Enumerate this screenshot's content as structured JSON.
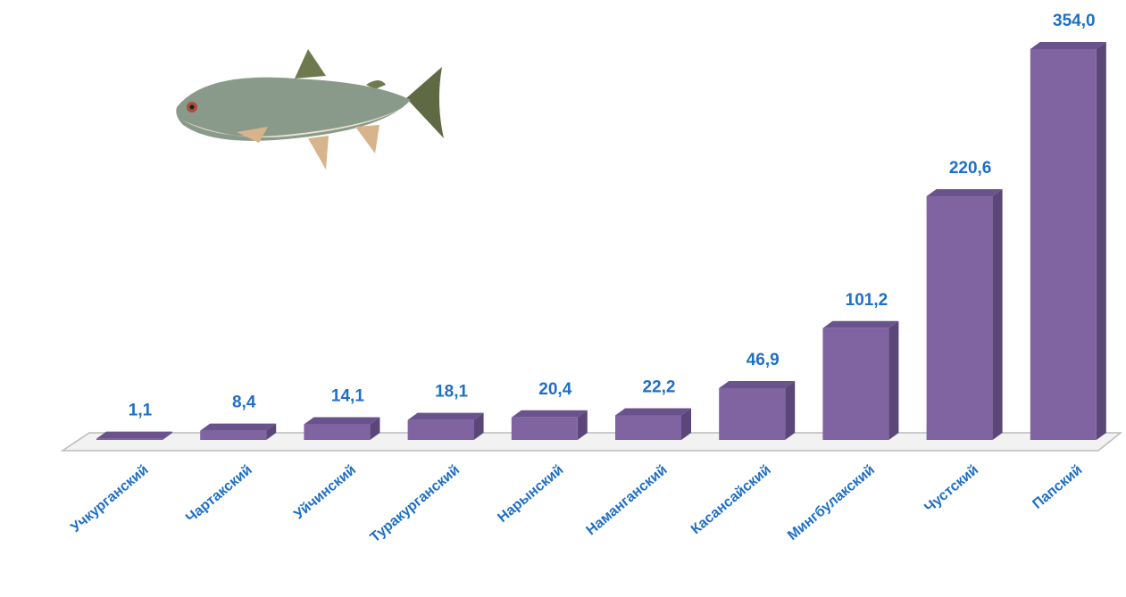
{
  "chart_data": {
    "type": "bar",
    "categories": [
      "Учкурганский",
      "Чартакский",
      "Уйчинский",
      "Туракурганский",
      "Нарынский",
      "Наманганский",
      "Касансайский",
      "Мингбулакский",
      "Чустский",
      "Папский"
    ],
    "values": [
      1.1,
      8.4,
      14.1,
      18.1,
      20.4,
      22.2,
      46.9,
      101.2,
      220.6,
      354.0
    ],
    "value_labels": [
      "1,1",
      "8,4",
      "14,1",
      "18,1",
      "20,4",
      "22,2",
      "46,9",
      "101,2",
      "220,6",
      "354,0"
    ],
    "color": "#8064a2"
  }
}
